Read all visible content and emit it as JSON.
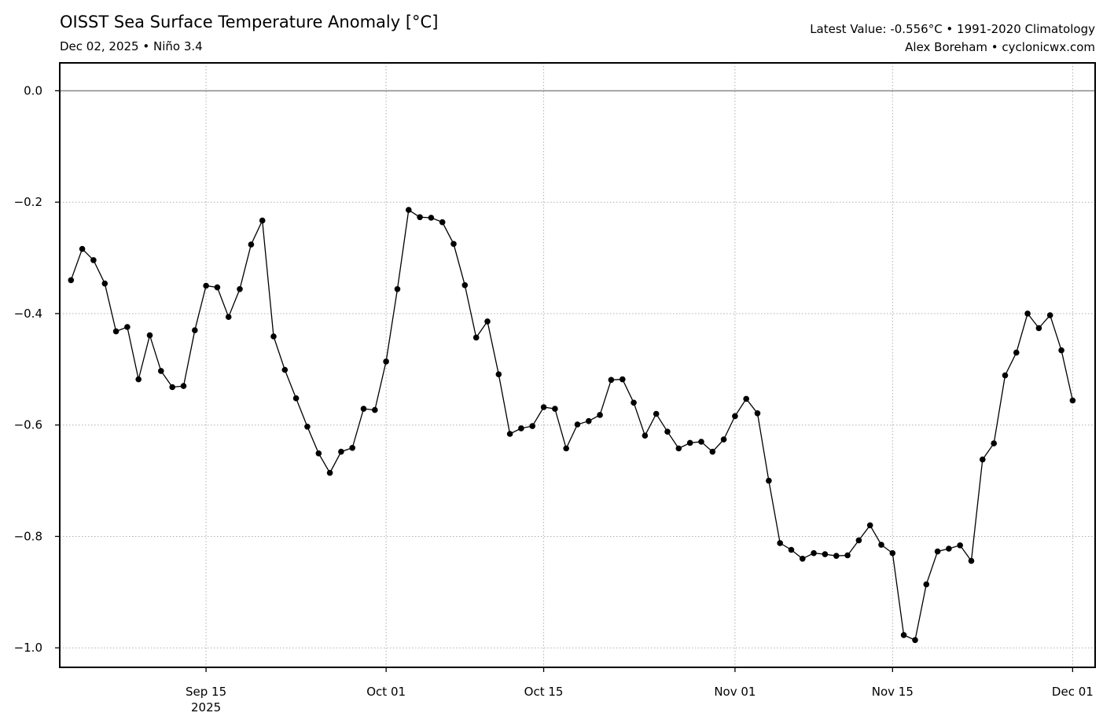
{
  "header": {
    "title": "OISST Sea Surface Temperature Anomaly [°C]",
    "subtitle": "Dec 02, 2025 • Niño 3.4",
    "info_line1": "Latest Value: -0.556°C • 1991-2020 Climatology",
    "info_line2": "Alex Boreham • cyclonicwx.com"
  },
  "chart_data": {
    "type": "line",
    "title": "OISST Sea Surface Temperature Anomaly [°C]",
    "subtitle": "Dec 02, 2025 • Niño 3.4",
    "xlabel": "",
    "ylabel": "",
    "x_start": "2025-09-03",
    "x_end": "2025-12-02",
    "xlim": [
      "2025-09-02",
      "2025-12-03"
    ],
    "ylim": [
      -1.035,
      0.05
    ],
    "grid": true,
    "line_color": "#000000",
    "zero_line_color": "#888888",
    "yticks": [
      0.0,
      -0.2,
      -0.4,
      -0.6,
      -0.8,
      -1.0
    ],
    "ytick_labels": [
      "0.0",
      "−0.2",
      "−0.4",
      "−0.6",
      "−0.8",
      "−1.0"
    ],
    "xticks": [
      {
        "date": "2025-09-15",
        "label": "Sep 15",
        "sublabel": "2025"
      },
      {
        "date": "2025-10-01",
        "label": "Oct 01",
        "sublabel": ""
      },
      {
        "date": "2025-10-15",
        "label": "Oct 15",
        "sublabel": ""
      },
      {
        "date": "2025-11-01",
        "label": "Nov 01",
        "sublabel": ""
      },
      {
        "date": "2025-11-15",
        "label": "Nov 15",
        "sublabel": ""
      },
      {
        "date": "2025-12-01",
        "label": "Dec 01",
        "sublabel": ""
      }
    ],
    "series": [
      {
        "values": [
          -0.34,
          -0.284,
          -0.304,
          -0.346,
          -0.432,
          -0.424,
          -0.518,
          -0.439,
          -0.503,
          -0.532,
          -0.53,
          -0.43,
          -0.35,
          -0.353,
          -0.406,
          -0.356,
          -0.276,
          -0.233,
          -0.441,
          -0.501,
          -0.552,
          -0.603,
          -0.651,
          -0.686,
          -0.648,
          -0.641,
          -0.571,
          -0.573,
          -0.486,
          -0.356,
          -0.214,
          -0.227,
          -0.228,
          -0.236,
          -0.275,
          -0.349,
          -0.443,
          -0.414,
          -0.509,
          -0.616,
          -0.606,
          -0.602,
          -0.568,
          -0.571,
          -0.642,
          -0.599,
          -0.593,
          -0.582,
          -0.519,
          -0.518,
          -0.56,
          -0.619,
          -0.58,
          -0.612,
          -0.642,
          -0.632,
          -0.63,
          -0.648,
          -0.626,
          -0.584,
          -0.553,
          -0.579,
          -0.7,
          -0.812,
          -0.824,
          -0.84,
          -0.83,
          -0.832,
          -0.835,
          -0.834,
          -0.807,
          -0.78,
          -0.815,
          -0.83,
          -0.977,
          -0.986,
          -0.886,
          -0.827,
          -0.822,
          -0.816,
          -0.844,
          -0.662,
          -0.633,
          -0.511,
          -0.47,
          -0.4,
          -0.426,
          -0.403,
          -0.466,
          -0.556
        ]
      }
    ]
  }
}
